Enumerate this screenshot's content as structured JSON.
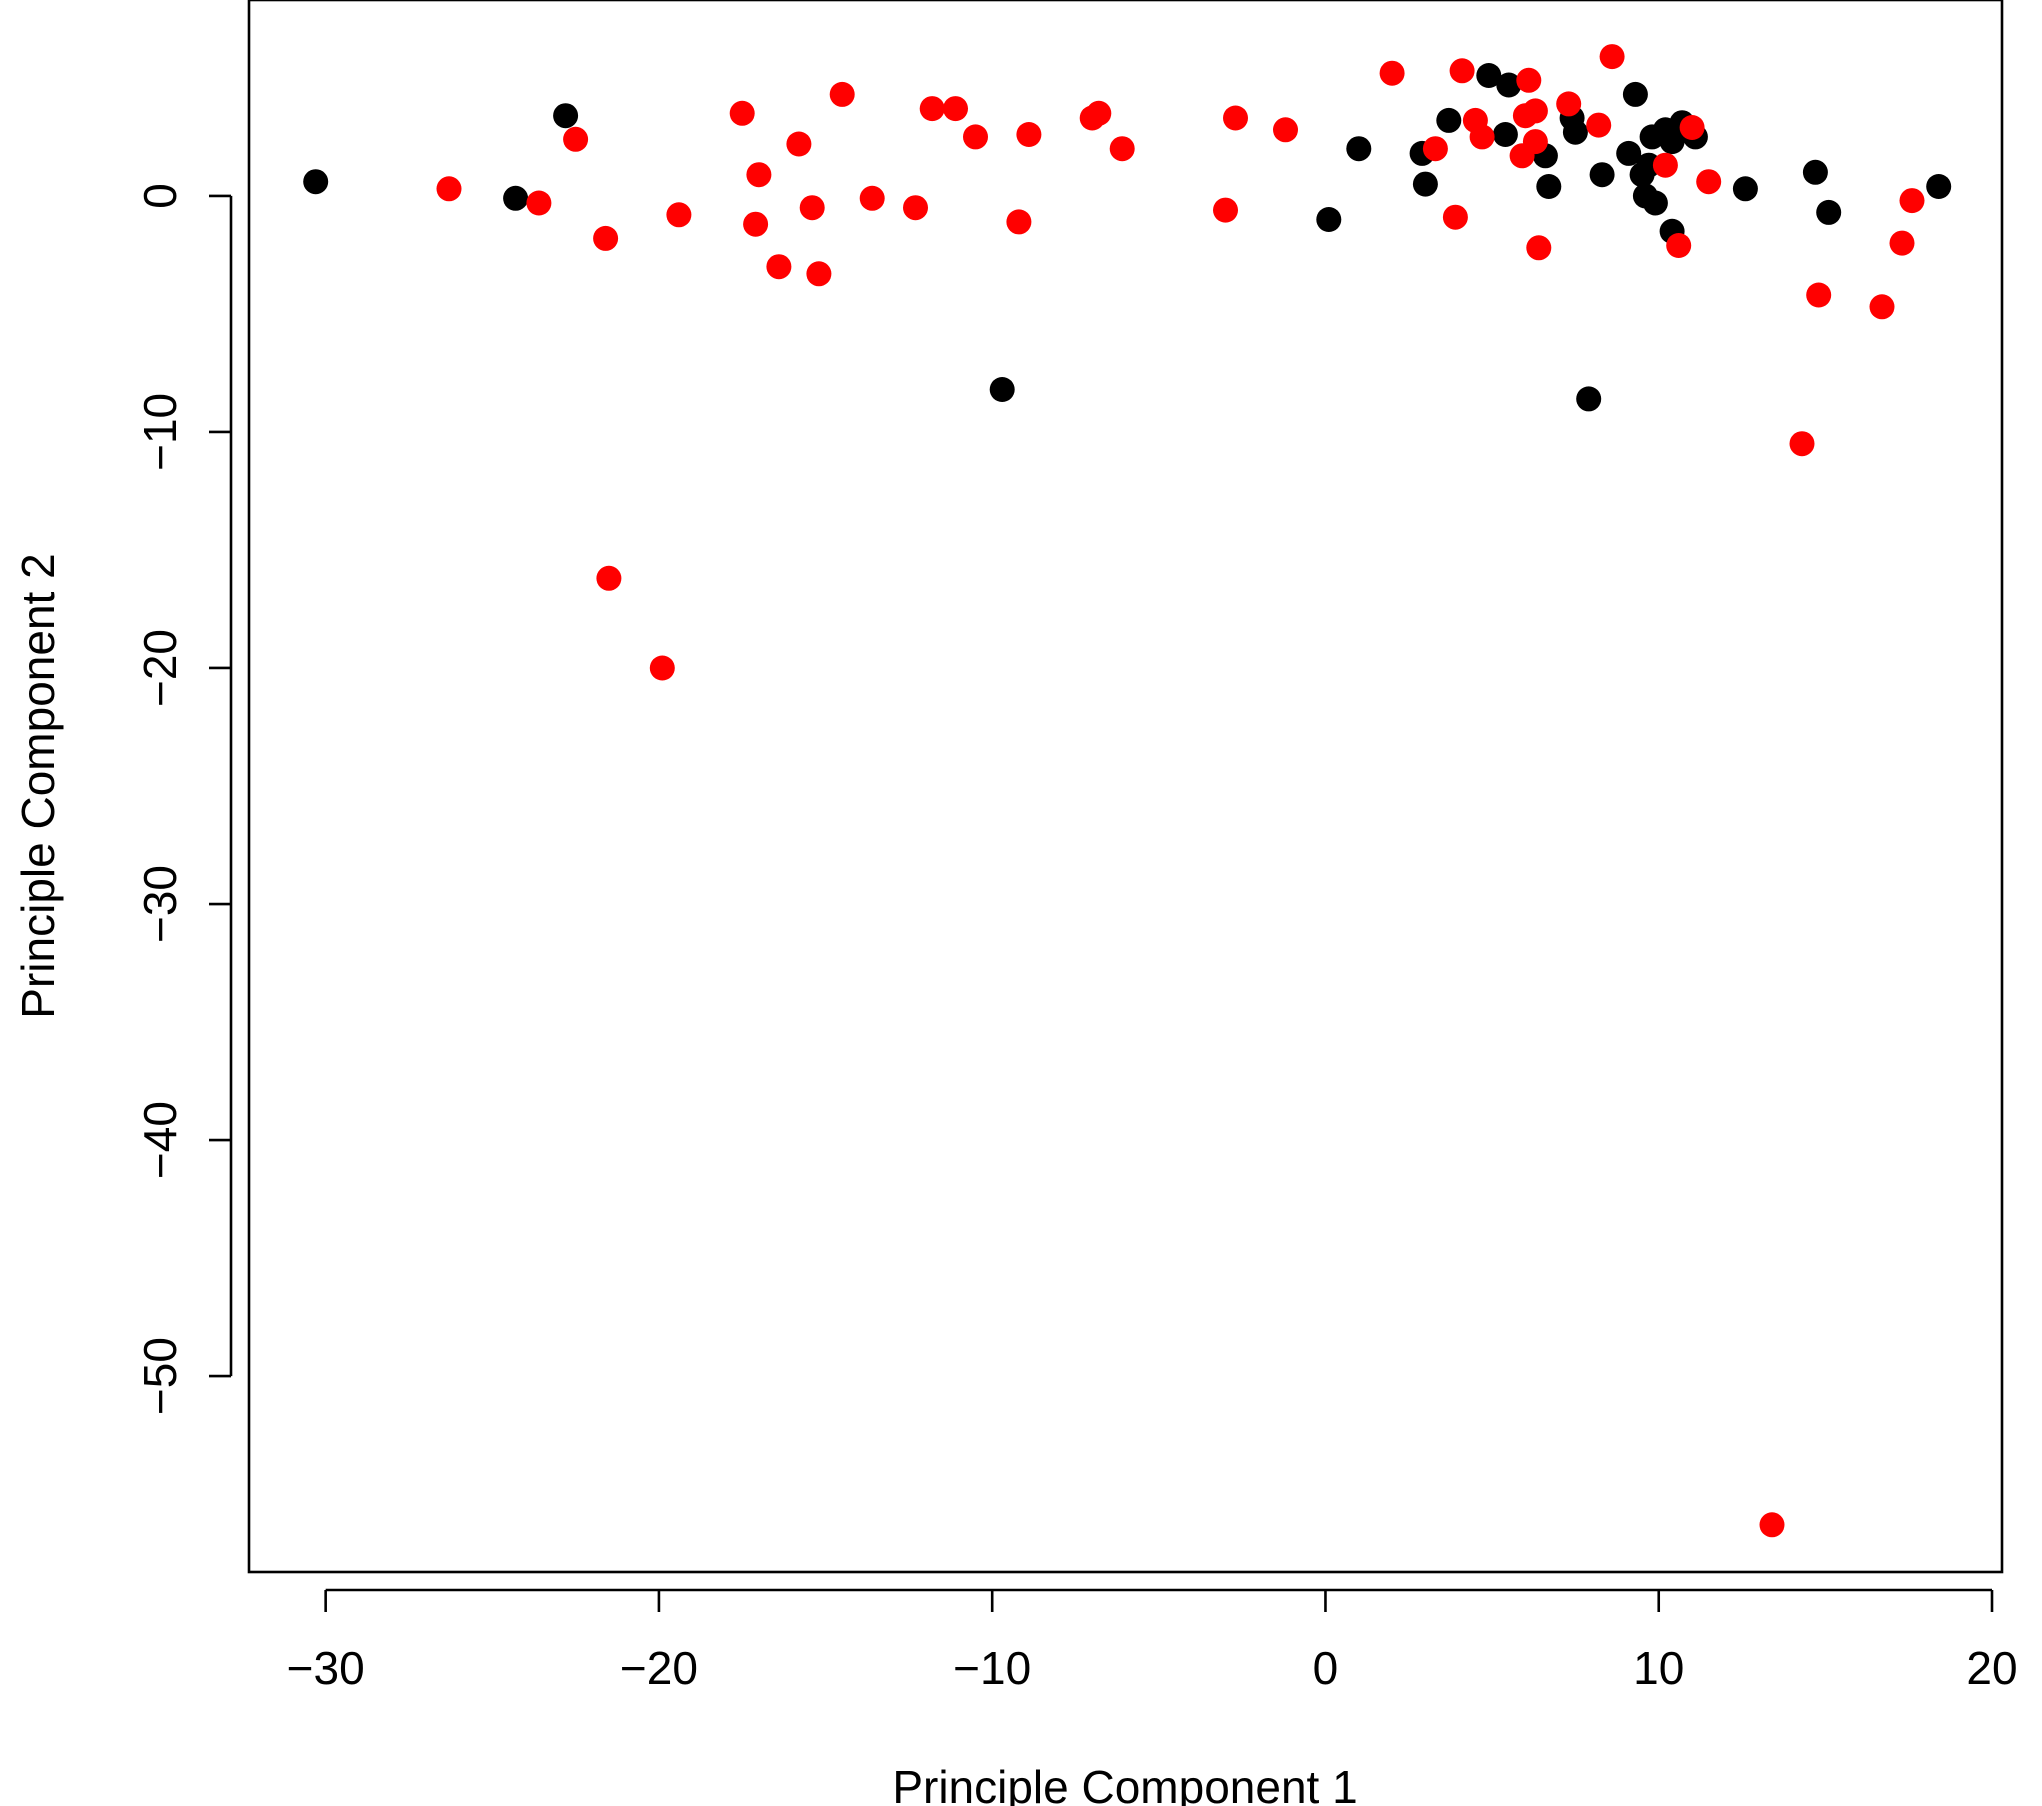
{
  "chart_data": {
    "type": "scatter",
    "title": "",
    "xlabel": "Principle Component 1",
    "ylabel": "Principle Component 2",
    "xlim": [
      -32.3,
      20.3
    ],
    "ylim": [
      -58.3,
      8.3
    ],
    "x_ticks": [
      -30,
      -20,
      -10,
      0,
      10,
      20
    ],
    "y_ticks": [
      0,
      -10,
      -20,
      -30,
      -40,
      -50
    ],
    "x_tick_labels": [
      "−30",
      "−20",
      "−10",
      "0",
      "10",
      "20"
    ],
    "y_tick_labels": [
      "0",
      "−10",
      "−20",
      "−30",
      "−40",
      "−50"
    ],
    "grid": false,
    "legend": "none",
    "series": [
      {
        "color": "#000000",
        "points": [
          [
            -30.3,
            0.6
          ],
          [
            -24.3,
            -0.1
          ],
          [
            -22.8,
            3.4
          ],
          [
            -9.7,
            -8.2
          ],
          [
            0.1,
            -1.0
          ],
          [
            1.0,
            2.0
          ],
          [
            2.9,
            1.8
          ],
          [
            3.0,
            0.5
          ],
          [
            3.7,
            3.2
          ],
          [
            4.9,
            5.1
          ],
          [
            5.4,
            2.6
          ],
          [
            5.5,
            4.7
          ],
          [
            6.6,
            1.7
          ],
          [
            6.7,
            0.4
          ],
          [
            7.4,
            3.3
          ],
          [
            7.5,
            2.7
          ],
          [
            7.9,
            -8.6
          ],
          [
            8.3,
            0.9
          ],
          [
            9.1,
            1.8
          ],
          [
            9.3,
            4.3
          ],
          [
            9.5,
            0.9
          ],
          [
            9.6,
            0.0
          ],
          [
            9.7,
            1.3
          ],
          [
            9.8,
            2.5
          ],
          [
            9.9,
            -0.3
          ],
          [
            10.2,
            2.8
          ],
          [
            10.4,
            2.3
          ],
          [
            10.4,
            -1.5
          ],
          [
            10.7,
            3.1
          ],
          [
            11.1,
            2.5
          ],
          [
            12.6,
            0.3
          ],
          [
            14.7,
            1.0
          ],
          [
            15.1,
            -0.7
          ],
          [
            18.4,
            0.4
          ]
        ]
      },
      {
        "color": "#ff0000",
        "points": [
          [
            -26.3,
            0.3
          ],
          [
            -23.6,
            -0.3
          ],
          [
            -22.5,
            2.4
          ],
          [
            -21.6,
            -1.8
          ],
          [
            -21.5,
            -16.2
          ],
          [
            -19.9,
            -20.0
          ],
          [
            -19.4,
            -0.8
          ],
          [
            -17.5,
            3.5
          ],
          [
            -17.1,
            -1.2
          ],
          [
            -17.0,
            0.9
          ],
          [
            -16.4,
            -3.0
          ],
          [
            -15.8,
            2.2
          ],
          [
            -15.4,
            -0.5
          ],
          [
            -15.2,
            -3.3
          ],
          [
            -14.5,
            4.3
          ],
          [
            -13.6,
            -0.1
          ],
          [
            -12.3,
            -0.5
          ],
          [
            -11.8,
            3.7
          ],
          [
            -11.1,
            3.7
          ],
          [
            -10.5,
            2.5
          ],
          [
            -9.2,
            -1.1
          ],
          [
            -8.9,
            2.6
          ],
          [
            -7.0,
            3.3
          ],
          [
            -6.8,
            3.5
          ],
          [
            -6.1,
            2.0
          ],
          [
            -3.0,
            -0.6
          ],
          [
            -2.7,
            3.3
          ],
          [
            -1.2,
            2.8
          ],
          [
            2.0,
            5.2
          ],
          [
            3.3,
            2.0
          ],
          [
            3.9,
            -0.9
          ],
          [
            4.1,
            5.3
          ],
          [
            4.5,
            3.2
          ],
          [
            4.7,
            2.5
          ],
          [
            5.9,
            1.7
          ],
          [
            6.0,
            3.4
          ],
          [
            6.1,
            4.9
          ],
          [
            6.3,
            3.6
          ],
          [
            6.3,
            2.3
          ],
          [
            6.4,
            -2.2
          ],
          [
            7.3,
            3.9
          ],
          [
            8.2,
            3.0
          ],
          [
            8.6,
            5.9
          ],
          [
            10.2,
            1.3
          ],
          [
            10.6,
            -2.1
          ],
          [
            11.0,
            2.9
          ],
          [
            11.5,
            0.6
          ],
          [
            13.4,
            -56.3
          ],
          [
            14.3,
            -10.5
          ],
          [
            14.8,
            -4.2
          ],
          [
            16.7,
            -4.7
          ],
          [
            17.3,
            -2.0
          ],
          [
            17.6,
            -0.2
          ]
        ]
      }
    ]
  }
}
